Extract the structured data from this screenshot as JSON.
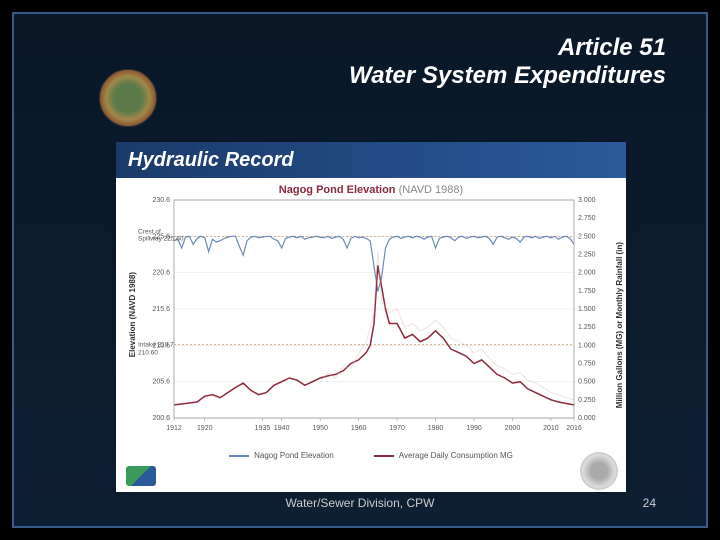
{
  "header": {
    "article": "Article 51",
    "subtitle": "Water System Expenditures"
  },
  "card": {
    "title_bar": "Hydraulic Record",
    "chart_title_main": "Nagog Pond Elevation",
    "chart_title_sub": "(NAVD 1988)"
  },
  "chart": {
    "type": "line-dual-axis",
    "background_color": "#ffffff",
    "grid_color": "#e0e0e0",
    "x": {
      "ticks": [
        1912,
        1920,
        1935,
        1940,
        1950,
        1960,
        1970,
        1980,
        1990,
        2000,
        2010,
        2016
      ],
      "label": "",
      "font_size": 7
    },
    "y_left": {
      "label": "Elevation (NAVD 1988)",
      "ticks": [
        200.6,
        205.6,
        210.6,
        215.6,
        220.6,
        225.6,
        230.6
      ],
      "font_size": 7,
      "color": "#333333"
    },
    "y_right": {
      "label": "Million Gallons (MG) or Monthly Rainfall (in)",
      "ticks": [
        0.0,
        0.25,
        0.5,
        0.75,
        1.0,
        1.25,
        1.5,
        1.75,
        2.0,
        2.25,
        2.5,
        2.75,
        3.0
      ],
      "font_size": 7,
      "color": "#333333"
    },
    "annotations": {
      "spillway": {
        "label": "Crest of Spillway 225.60",
        "y": 225.6
      },
      "intake": {
        "label": "Intake 210.7",
        "y": 210.7
      },
      "intake2": {
        "y": 210.6
      }
    },
    "series": [
      {
        "name": "Nagog Pond Elevation",
        "axis": "left",
        "color": "#6a8ab8",
        "width": 1.2,
        "points": [
          [
            1912,
            225.0
          ],
          [
            1913,
            225.2
          ],
          [
            1914,
            224.0
          ],
          [
            1915,
            225.5
          ],
          [
            1916,
            225.6
          ],
          [
            1917,
            224.5
          ],
          [
            1918,
            225.3
          ],
          [
            1919,
            225.6
          ],
          [
            1920,
            225.4
          ],
          [
            1921,
            223.5
          ],
          [
            1922,
            225.2
          ],
          [
            1923,
            224.8
          ],
          [
            1924,
            225.0
          ],
          [
            1925,
            225.3
          ],
          [
            1926,
            225.5
          ],
          [
            1927,
            225.6
          ],
          [
            1928,
            225.6
          ],
          [
            1929,
            224.2
          ],
          [
            1930,
            223.0
          ],
          [
            1931,
            225.0
          ],
          [
            1932,
            225.5
          ],
          [
            1933,
            225.6
          ],
          [
            1934,
            225.4
          ],
          [
            1935,
            225.5
          ],
          [
            1936,
            225.6
          ],
          [
            1937,
            225.6
          ],
          [
            1938,
            225.2
          ],
          [
            1939,
            225.0
          ],
          [
            1940,
            224.0
          ],
          [
            1941,
            225.3
          ],
          [
            1942,
            225.5
          ],
          [
            1943,
            225.6
          ],
          [
            1944,
            225.4
          ],
          [
            1945,
            225.6
          ],
          [
            1946,
            225.2
          ],
          [
            1947,
            225.4
          ],
          [
            1948,
            225.5
          ],
          [
            1949,
            225.6
          ],
          [
            1950,
            225.5
          ],
          [
            1951,
            225.4
          ],
          [
            1952,
            225.6
          ],
          [
            1953,
            225.3
          ],
          [
            1954,
            225.5
          ],
          [
            1955,
            225.6
          ],
          [
            1956,
            225.2
          ],
          [
            1957,
            224.0
          ],
          [
            1958,
            225.3
          ],
          [
            1959,
            225.6
          ],
          [
            1960,
            225.4
          ],
          [
            1961,
            225.5
          ],
          [
            1962,
            225.3
          ],
          [
            1963,
            225.0
          ],
          [
            1964,
            221.5
          ],
          [
            1965,
            218.0
          ],
          [
            1966,
            220.0
          ],
          [
            1967,
            224.0
          ],
          [
            1968,
            225.2
          ],
          [
            1969,
            225.5
          ],
          [
            1970,
            225.6
          ],
          [
            1971,
            225.3
          ],
          [
            1972,
            225.5
          ],
          [
            1973,
            225.6
          ],
          [
            1974,
            225.4
          ],
          [
            1975,
            225.6
          ],
          [
            1976,
            225.5
          ],
          [
            1977,
            225.2
          ],
          [
            1978,
            225.5
          ],
          [
            1979,
            225.6
          ],
          [
            1980,
            224.0
          ],
          [
            1981,
            225.3
          ],
          [
            1982,
            225.5
          ],
          [
            1983,
            225.6
          ],
          [
            1984,
            225.4
          ],
          [
            1985,
            225.0
          ],
          [
            1986,
            225.5
          ],
          [
            1987,
            225.6
          ],
          [
            1988,
            225.3
          ],
          [
            1989,
            225.5
          ],
          [
            1990,
            225.6
          ],
          [
            1991,
            225.4
          ],
          [
            1992,
            225.5
          ],
          [
            1993,
            225.6
          ],
          [
            1994,
            225.3
          ],
          [
            1995,
            224.5
          ],
          [
            1996,
            225.5
          ],
          [
            1997,
            225.6
          ],
          [
            1998,
            225.4
          ],
          [
            1999,
            225.2
          ],
          [
            2000,
            225.5
          ],
          [
            2001,
            225.3
          ],
          [
            2002,
            224.8
          ],
          [
            2003,
            225.5
          ],
          [
            2004,
            225.6
          ],
          [
            2005,
            225.4
          ],
          [
            2006,
            225.6
          ],
          [
            2007,
            225.3
          ],
          [
            2008,
            225.5
          ],
          [
            2009,
            225.6
          ],
          [
            2010,
            225.4
          ],
          [
            2011,
            225.6
          ],
          [
            2012,
            225.2
          ],
          [
            2013,
            225.5
          ],
          [
            2014,
            225.6
          ],
          [
            2015,
            225.3
          ],
          [
            2016,
            224.5
          ]
        ]
      },
      {
        "name": "Average Daily Consumption MG",
        "axis": "right",
        "color": "#8a2a3a",
        "width": 1.5,
        "points": [
          [
            1912,
            0.18
          ],
          [
            1915,
            0.2
          ],
          [
            1918,
            0.22
          ],
          [
            1920,
            0.3
          ],
          [
            1922,
            0.32
          ],
          [
            1924,
            0.28
          ],
          [
            1926,
            0.35
          ],
          [
            1928,
            0.42
          ],
          [
            1930,
            0.48
          ],
          [
            1932,
            0.38
          ],
          [
            1934,
            0.32
          ],
          [
            1936,
            0.35
          ],
          [
            1938,
            0.45
          ],
          [
            1940,
            0.5
          ],
          [
            1942,
            0.55
          ],
          [
            1944,
            0.52
          ],
          [
            1946,
            0.45
          ],
          [
            1948,
            0.5
          ],
          [
            1950,
            0.55
          ],
          [
            1952,
            0.58
          ],
          [
            1954,
            0.6
          ],
          [
            1956,
            0.65
          ],
          [
            1958,
            0.75
          ],
          [
            1960,
            0.8
          ],
          [
            1962,
            0.9
          ],
          [
            1963,
            1.0
          ],
          [
            1964,
            1.3
          ],
          [
            1965,
            2.1
          ],
          [
            1966,
            1.8
          ],
          [
            1967,
            1.5
          ],
          [
            1968,
            1.3
          ],
          [
            1970,
            1.3
          ],
          [
            1972,
            1.1
          ],
          [
            1974,
            1.15
          ],
          [
            1976,
            1.05
          ],
          [
            1978,
            1.1
          ],
          [
            1980,
            1.2
          ],
          [
            1982,
            1.1
          ],
          [
            1984,
            0.95
          ],
          [
            1986,
            0.9
          ],
          [
            1988,
            0.85
          ],
          [
            1990,
            0.75
          ],
          [
            1992,
            0.8
          ],
          [
            1994,
            0.7
          ],
          [
            1996,
            0.6
          ],
          [
            1998,
            0.55
          ],
          [
            2000,
            0.48
          ],
          [
            2002,
            0.5
          ],
          [
            2004,
            0.4
          ],
          [
            2006,
            0.35
          ],
          [
            2008,
            0.3
          ],
          [
            2010,
            0.25
          ],
          [
            2012,
            0.22
          ],
          [
            2014,
            0.2
          ],
          [
            2016,
            0.18
          ]
        ]
      },
      {
        "name": "consumption-ghost",
        "axis": "right",
        "color": "#d8b8bc",
        "width": 0.8,
        "opacity": 0.5,
        "points": [
          [
            1950,
            0.5
          ],
          [
            1952,
            0.62
          ],
          [
            1954,
            0.55
          ],
          [
            1956,
            0.72
          ],
          [
            1958,
            0.68
          ],
          [
            1960,
            0.88
          ],
          [
            1962,
            1.05
          ],
          [
            1964,
            1.45
          ],
          [
            1965,
            2.3
          ],
          [
            1966,
            1.6
          ],
          [
            1968,
            1.45
          ],
          [
            1970,
            1.5
          ],
          [
            1972,
            1.25
          ],
          [
            1974,
            1.3
          ],
          [
            1976,
            1.2
          ],
          [
            1978,
            1.25
          ],
          [
            1980,
            1.35
          ],
          [
            1982,
            1.25
          ],
          [
            1984,
            1.1
          ],
          [
            1986,
            1.05
          ],
          [
            1988,
            1.0
          ],
          [
            1990,
            0.9
          ],
          [
            1992,
            0.95
          ],
          [
            1994,
            0.82
          ],
          [
            1996,
            0.72
          ],
          [
            1998,
            0.68
          ],
          [
            2000,
            0.6
          ],
          [
            2002,
            0.62
          ],
          [
            2004,
            0.52
          ],
          [
            2006,
            0.48
          ],
          [
            2008,
            0.42
          ],
          [
            2010,
            0.35
          ],
          [
            2012,
            0.32
          ],
          [
            2014,
            0.28
          ],
          [
            2016,
            0.25
          ]
        ]
      }
    ],
    "legend": [
      {
        "label": "Nagog Pond Elevation",
        "color": "#6a8ab8"
      },
      {
        "label": "Average Daily Consumption MG",
        "color": "#8a2a3a"
      }
    ]
  },
  "footer": {
    "text": "Water/Sewer Division, CPW",
    "page": "24"
  }
}
